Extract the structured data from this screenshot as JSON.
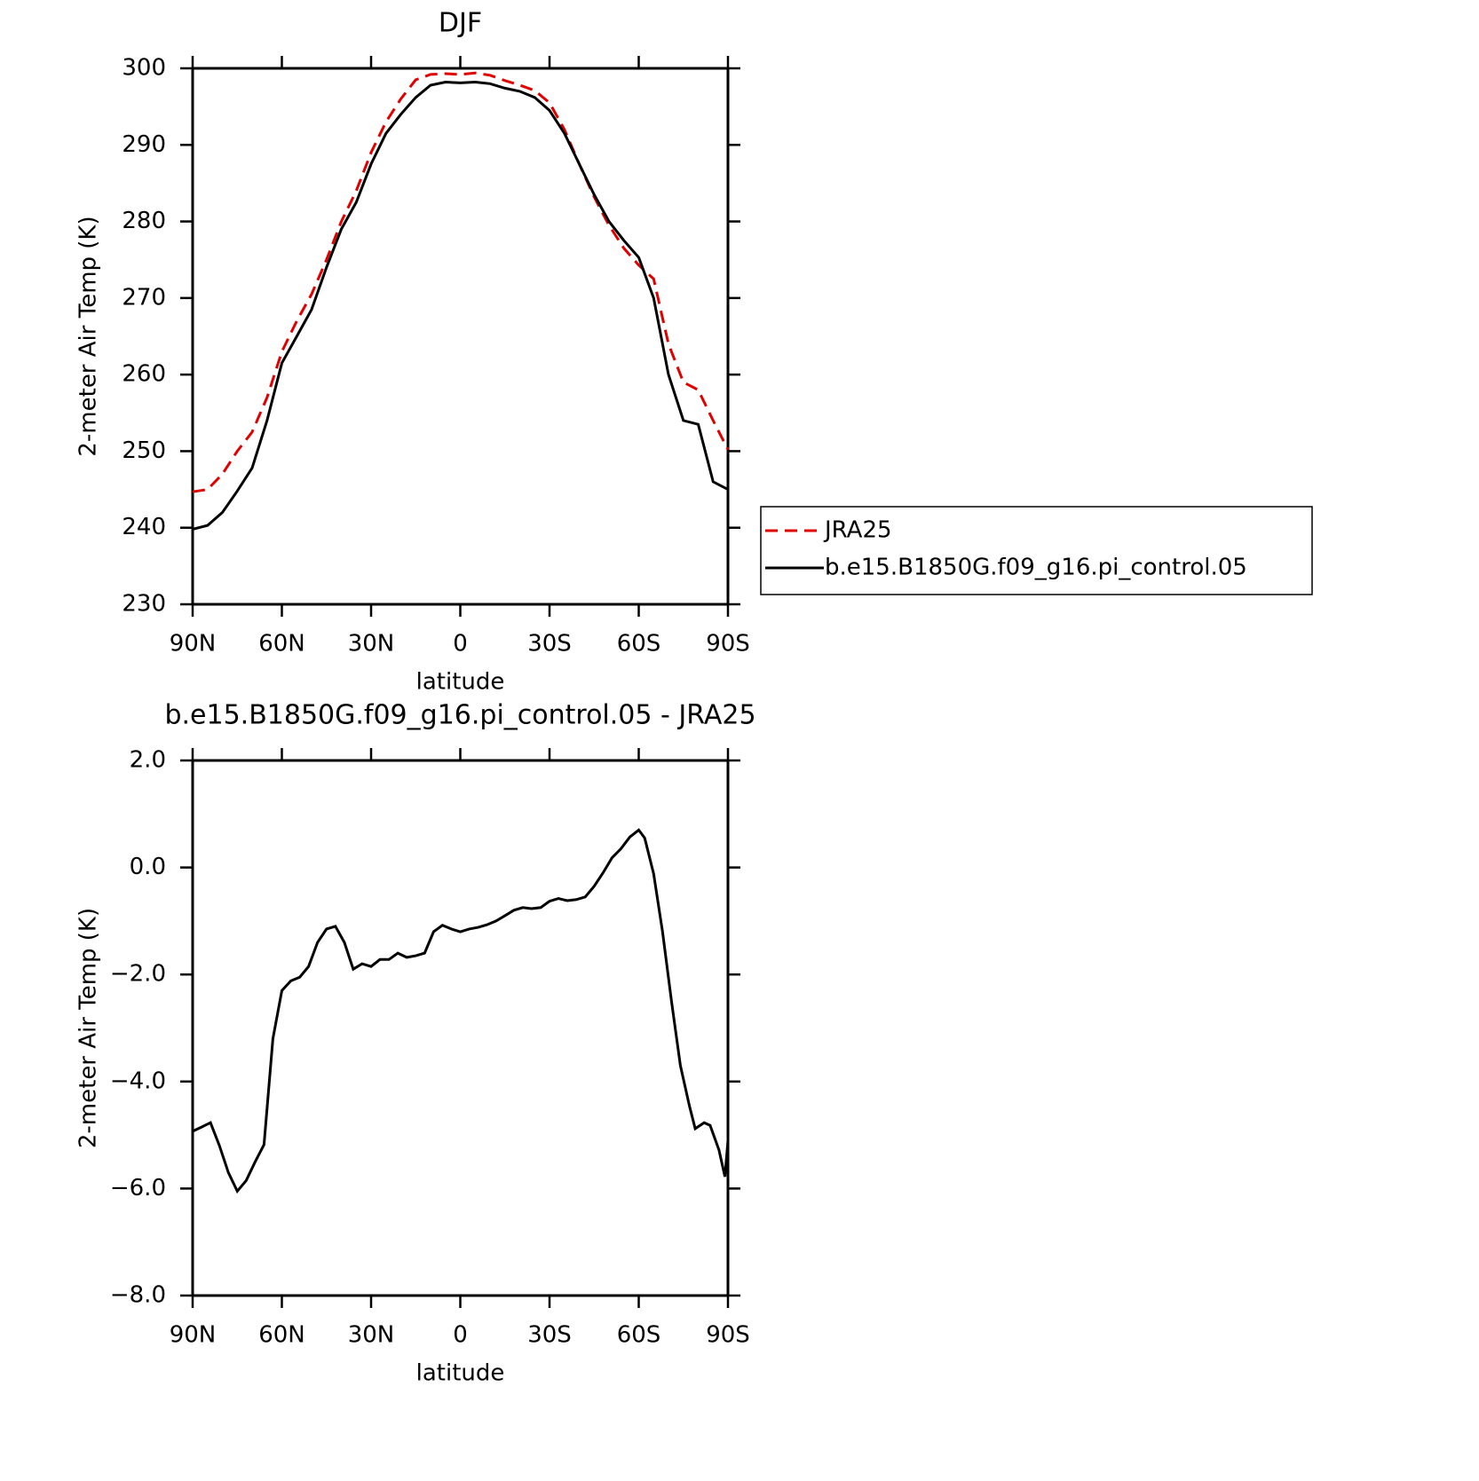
{
  "chart_data": [
    {
      "type": "line",
      "title": "DJF",
      "xlabel": "latitude",
      "ylabel": "2-meter Air Temp (K)",
      "x": [
        90,
        85,
        80,
        75,
        70,
        65,
        60,
        55,
        50,
        45,
        40,
        35,
        30,
        25,
        20,
        15,
        10,
        5,
        0,
        -5,
        -10,
        -15,
        -20,
        -25,
        -30,
        -35,
        -40,
        -45,
        -50,
        -55,
        -60,
        -65,
        -70,
        -75,
        -80,
        -85,
        -90
      ],
      "series": [
        {
          "name": "JRA25",
          "color": "#e00000",
          "dash": true,
          "values": [
            244.7,
            245,
            247,
            250,
            252.5,
            257,
            263,
            267,
            270.5,
            275,
            280,
            284,
            289,
            293,
            296,
            298.5,
            299.2,
            299.3,
            299.2,
            299.4,
            299.1,
            298.4,
            297.8,
            297.1,
            295.5,
            292,
            287.5,
            283.2,
            279.5,
            276.5,
            274.3,
            272.5,
            264,
            259,
            258,
            254,
            250.2
          ]
        },
        {
          "name": "b.e15.B1850G.f09_g16.pi_control.05",
          "color": "#000000",
          "dash": false,
          "values": [
            239.8,
            240.3,
            242,
            244.8,
            247.8,
            254,
            261.5,
            265,
            268.5,
            274,
            279,
            282.5,
            287.5,
            291.5,
            294,
            296.2,
            297.8,
            298.2,
            298.1,
            298.2,
            298,
            297.4,
            297,
            296.2,
            294.5,
            291.5,
            287.5,
            283.5,
            280,
            277.5,
            275.3,
            270,
            260,
            254,
            253.5,
            246,
            245
          ]
        }
      ],
      "xlim": [
        90,
        -90
      ],
      "xticks": [
        {
          "value": 90,
          "label": "90N"
        },
        {
          "value": 60,
          "label": "60N"
        },
        {
          "value": 30,
          "label": "30N"
        },
        0,
        {
          "value": -30,
          "label": "30S"
        },
        {
          "value": -60,
          "label": "60S"
        },
        {
          "value": -90,
          "label": "90S"
        }
      ],
      "ylim": [
        230,
        300
      ],
      "yticks": [
        230,
        240,
        250,
        260,
        270,
        280,
        290,
        300
      ],
      "legend": "right"
    },
    {
      "type": "line",
      "title": "b.e15.B1850G.f09_g16.pi_control.05 - JRA25",
      "xlabel": "latitude",
      "ylabel": "2-meter Air Temp (K)",
      "x": [
        90,
        87,
        84,
        81,
        78,
        75,
        72,
        69,
        66,
        63,
        60,
        57,
        54,
        51,
        48,
        45,
        42,
        39,
        36,
        33,
        30,
        27,
        24,
        21,
        18,
        15,
        12,
        9,
        6,
        3,
        0,
        -3,
        -6,
        -9,
        -12,
        -15,
        -18,
        -21,
        -24,
        -27,
        -30,
        -33,
        -36,
        -39,
        -42,
        -45,
        -48,
        -51,
        -54,
        -57,
        -60,
        -62,
        -65,
        -68,
        -71,
        -74,
        -77,
        -79,
        -82,
        -84,
        -87,
        -89,
        -90
      ],
      "series": [
        {
          "color": "#000000",
          "dash": false,
          "values": [
            -4.93,
            -4.85,
            -4.77,
            -5.2,
            -5.7,
            -6.05,
            -5.85,
            -5.5,
            -5.18,
            -3.2,
            -2.3,
            -2.12,
            -2.05,
            -1.85,
            -1.4,
            -1.15,
            -1.1,
            -1.4,
            -1.9,
            -1.8,
            -1.85,
            -1.72,
            -1.72,
            -1.6,
            -1.68,
            -1.65,
            -1.6,
            -1.2,
            -1.08,
            -1.15,
            -1.2,
            -1.15,
            -1.12,
            -1.07,
            -1.0,
            -0.9,
            -0.8,
            -0.75,
            -0.77,
            -0.75,
            -0.63,
            -0.58,
            -0.62,
            -0.6,
            -0.55,
            -0.35,
            -0.1,
            0.18,
            0.35,
            0.57,
            0.7,
            0.55,
            -0.12,
            -1.2,
            -2.5,
            -3.7,
            -4.45,
            -4.88,
            -4.77,
            -4.82,
            -5.28,
            -5.78,
            -5.1
          ]
        }
      ],
      "xlim": [
        90,
        -90
      ],
      "xticks": [
        {
          "value": 90,
          "label": "90N"
        },
        {
          "value": 60,
          "label": "60N"
        },
        {
          "value": 30,
          "label": "30N"
        },
        0,
        {
          "value": -30,
          "label": "30S"
        },
        {
          "value": -60,
          "label": "60S"
        },
        {
          "value": -90,
          "label": "90S"
        }
      ],
      "ylim": [
        -8,
        2
      ],
      "yticks": [
        {
          "value": -8,
          "label": "−8.0"
        },
        {
          "value": -6,
          "label": "−6.0"
        },
        {
          "value": -4,
          "label": "−4.0"
        },
        {
          "value": -2,
          "label": "−2.0"
        },
        {
          "value": 0,
          "label": "0.0"
        },
        {
          "value": 2,
          "label": "2.0"
        }
      ]
    }
  ]
}
